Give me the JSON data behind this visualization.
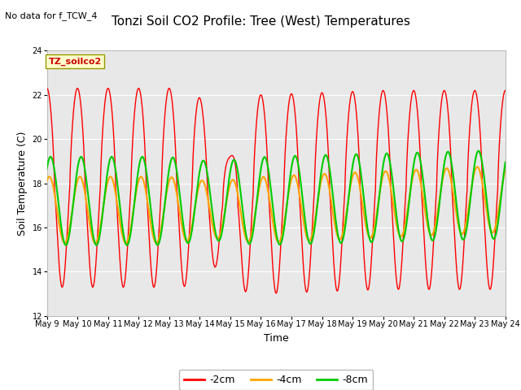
{
  "title": "Tonzi Soil CO2 Profile: Tree (West) Temperatures",
  "xlabel": "Time",
  "ylabel": "Soil Temperature (C)",
  "no_data_text": "No data for f_TCW_4",
  "legend_label_text": "TZ_soilco2",
  "legend_entries": [
    "-2cm",
    "-4cm",
    "-8cm"
  ],
  "legend_colors": [
    "#ff0000",
    "#ffa500",
    "#00cc00"
  ],
  "ylim": [
    12,
    24
  ],
  "yticks": [
    12,
    14,
    16,
    18,
    20,
    22,
    24
  ],
  "bg_color": "#e8e8e8",
  "fig_bg_color": "#ffffff",
  "grid_color": "#ffffff",
  "x_start": 9,
  "x_end": 24,
  "xtick_labels": [
    "May 9",
    "May 10",
    "May 11",
    "May 12",
    "May 13",
    "May 14",
    "May 15",
    "May 16",
    "May 17",
    "May 18",
    "May 19",
    "May 20",
    "May 21",
    "May 22",
    "May 23",
    "May 24"
  ],
  "xtick_positions": [
    9,
    10,
    11,
    12,
    13,
    14,
    15,
    16,
    17,
    18,
    19,
    20,
    21,
    22,
    23,
    24
  ],
  "title_fontsize": 11,
  "axes_fontsize": 9,
  "tick_fontsize": 7,
  "legend_fontsize": 9
}
